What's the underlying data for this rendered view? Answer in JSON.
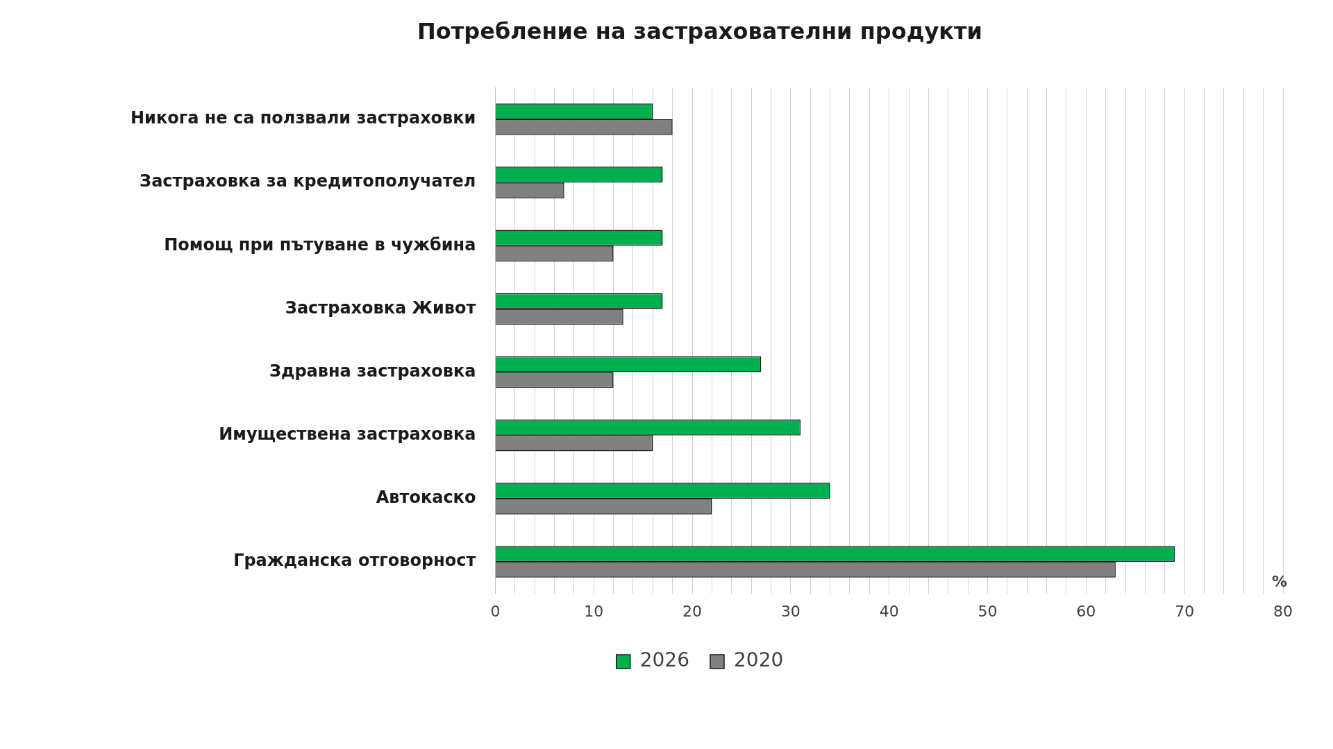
{
  "chart_data": {
    "type": "bar",
    "orientation": "horizontal",
    "title": "Потребление на застрахователни продукти",
    "xlabel": "%",
    "categories": [
      "Никога не са ползвали застраховки",
      "Застраховка за кредитополучател",
      "Помощ при пътуване в чужбина",
      "Застраховка Живот",
      "Здравна застраховка",
      "Имуществена застраховка",
      "Автокаско",
      "Гражданска отговорност"
    ],
    "series": [
      {
        "name": "2026",
        "color": "#00b050",
        "values": [
          16,
          17,
          17,
          17,
          27,
          31,
          34,
          69
        ]
      },
      {
        "name": "2020",
        "color": "#808080",
        "values": [
          18,
          7,
          12,
          13,
          12,
          16,
          22,
          63
        ]
      }
    ],
    "xlim": [
      0,
      80
    ],
    "xticks": [
      0,
      {
        "value": 2,
        "label": null
      },
      {
        "value": 4,
        "label": null
      },
      {
        "value": 6,
        "label": null
      },
      {
        "value": 8,
        "label": null
      },
      10,
      {
        "value": 12,
        "label": null
      },
      {
        "value": 14,
        "label": null
      },
      {
        "value": 16,
        "label": null
      },
      {
        "value": 18,
        "label": null
      },
      20,
      {
        "value": 22,
        "label": null
      },
      {
        "value": 24,
        "label": null
      },
      {
        "value": 26,
        "label": null
      },
      {
        "value": 28,
        "label": null
      },
      30,
      {
        "value": 32,
        "label": null
      },
      {
        "value": 34,
        "label": null
      },
      {
        "value": 36,
        "label": null
      },
      {
        "value": 38,
        "label": null
      },
      40,
      {
        "value": 42,
        "label": null
      },
      {
        "value": 44,
        "label": null
      },
      {
        "value": 46,
        "label": null
      },
      {
        "value": 48,
        "label": null
      },
      50,
      {
        "value": 52,
        "label": null
      },
      {
        "value": 54,
        "label": null
      },
      {
        "value": 56,
        "label": null
      },
      {
        "value": 58,
        "label": null
      },
      60,
      {
        "value": 62,
        "label": null
      },
      {
        "value": 64,
        "label": null
      },
      {
        "value": 66,
        "label": null
      },
      {
        "value": 68,
        "label": null
      },
      70,
      {
        "value": 72,
        "label": null
      },
      {
        "value": 74,
        "label": null
      },
      {
        "value": 76,
        "label": null
      },
      {
        "value": 78,
        "label": null
      },
      80
    ],
    "grid": "x",
    "legend": "bottom"
  }
}
